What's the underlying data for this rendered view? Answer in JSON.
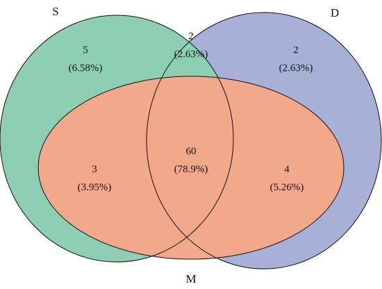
{
  "sets": [
    {
      "label": "S"
    },
    {
      "label": "D"
    },
    {
      "label": "M"
    }
  ],
  "regions": [
    {
      "count": 5,
      "percent": "(6.58%)"
    },
    {
      "count": 2,
      "percent": "(2.63%)"
    },
    {
      "count": 2,
      "percent": "(2.63%)"
    },
    {
      "count": 3,
      "percent": "(3.95%)"
    },
    {
      "count": 60,
      "percent": "(78.9%)"
    },
    {
      "count": 4,
      "percent": "(5.26%)"
    }
  ]
}
